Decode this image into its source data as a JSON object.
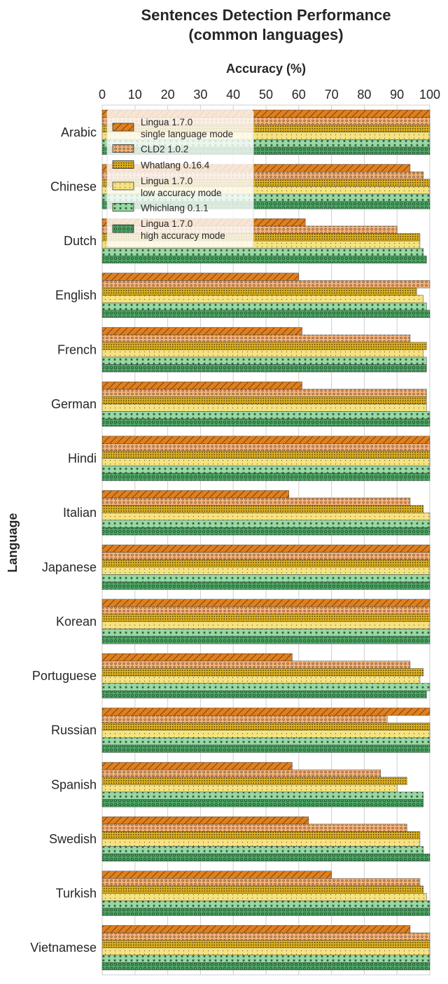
{
  "chart_data": {
    "type": "bar",
    "orientation": "horizontal",
    "title_lines": [
      "Sentences Detection Performance",
      "(common languages)"
    ],
    "xlabel": "Accuracy (%)",
    "ylabel": "Language",
    "xlim": [
      0,
      100
    ],
    "xticks": [
      "0",
      "10",
      "20",
      "30",
      "40",
      "50",
      "60",
      "70",
      "80",
      "90",
      "100"
    ],
    "grid": true,
    "legend_position": "top-left",
    "categories": [
      "Arabic",
      "Chinese",
      "Dutch",
      "English",
      "French",
      "German",
      "Hindi",
      "Italian",
      "Japanese",
      "Korean",
      "Portuguese",
      "Russian",
      "Spanish",
      "Swedish",
      "Turkish",
      "Vietnamese"
    ],
    "series": [
      {
        "name": "Lingua 1.7.0 single language mode",
        "legend_lines": [
          "Lingua 1.7.0",
          "single language mode"
        ],
        "color": "#E07F1E",
        "pattern": "hatch",
        "values": [
          100,
          94,
          62,
          60,
          61,
          61,
          100,
          57,
          100,
          100,
          58,
          100,
          58,
          63,
          70,
          94
        ]
      },
      {
        "name": "CLD2 1.0.2",
        "legend_lines": [
          "CLD2 1.0.2"
        ],
        "color": "#F4B27A",
        "pattern": "circles",
        "values": [
          100,
          98,
          90,
          100,
          94,
          99,
          100,
          94,
          100,
          100,
          94,
          87,
          85,
          93,
          97,
          100
        ]
      },
      {
        "name": "Whatlang 0.16.4",
        "legend_lines": [
          "Whatlang 0.16.4"
        ],
        "color": "#D9AE1E",
        "pattern": "dots",
        "values": [
          100,
          100,
          97,
          96,
          99,
          99,
          100,
          98,
          100,
          100,
          98,
          100,
          93,
          97,
          98,
          100
        ]
      },
      {
        "name": "Lingua 1.7.0 low accuracy mode",
        "legend_lines": [
          "Lingua 1.7.0",
          "low accuracy mode"
        ],
        "color": "#F6E27F",
        "pattern": "smalldots",
        "values": [
          100,
          100,
          97,
          98,
          98,
          99,
          100,
          100,
          100,
          100,
          97,
          100,
          90,
          97,
          99,
          100
        ]
      },
      {
        "name": "Whichlang 0.1.1",
        "legend_lines": [
          "Whichlang 0.1.1"
        ],
        "color": "#98D8A4",
        "pattern": "stars",
        "values": [
          100,
          100,
          98,
          99,
          99,
          100,
          100,
          100,
          100,
          100,
          100,
          100,
          98,
          98,
          100,
          100
        ]
      },
      {
        "name": "Lingua 1.7.0 high accuracy mode",
        "legend_lines": [
          "Lingua 1.7.0",
          "high accuracy mode"
        ],
        "color": "#4DA564",
        "pattern": "rings",
        "values": [
          100,
          100,
          99,
          100,
          99,
          100,
          100,
          100,
          100,
          100,
          99,
          100,
          98,
          100,
          100,
          100
        ]
      }
    ]
  }
}
